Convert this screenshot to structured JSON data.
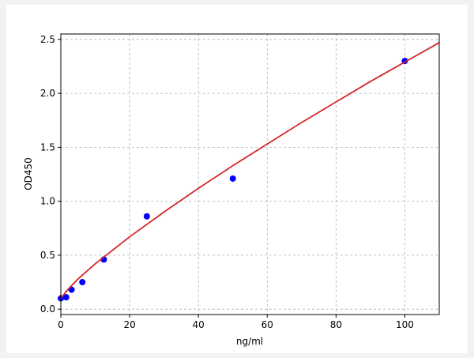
{
  "chart_data": {
    "type": "scatter",
    "xlabel": "ng/ml",
    "ylabel": "OD450",
    "xlim": [
      0,
      110
    ],
    "ylim": [
      -0.05,
      2.55
    ],
    "xticks": [
      0,
      20,
      40,
      60,
      80,
      100
    ],
    "yticks": [
      {
        "value": 0,
        "label": "0.0"
      },
      0.5,
      {
        "value": 1,
        "label": "1.0"
      },
      1.5,
      {
        "value": 2,
        "label": "2.0"
      },
      2.5
    ],
    "grid": true,
    "series": [
      {
        "type": "scatter",
        "color": "#0000ff",
        "x": [
          0,
          1.56,
          3.12,
          6.25,
          12.5,
          25,
          50,
          100
        ],
        "values": [
          0.1,
          0.11,
          0.18,
          0.25,
          0.46,
          0.86,
          1.21,
          2.3
        ]
      },
      {
        "type": "line",
        "color": "#d62728",
        "x": [
          0,
          2,
          5,
          10,
          20,
          30,
          40,
          50,
          60,
          70,
          80,
          90,
          100,
          110
        ],
        "values": [
          0.1,
          0.18,
          0.28,
          0.42,
          0.67,
          0.9,
          1.12,
          1.33,
          1.53,
          1.73,
          1.92,
          2.11,
          2.29,
          2.47
        ]
      }
    ]
  }
}
